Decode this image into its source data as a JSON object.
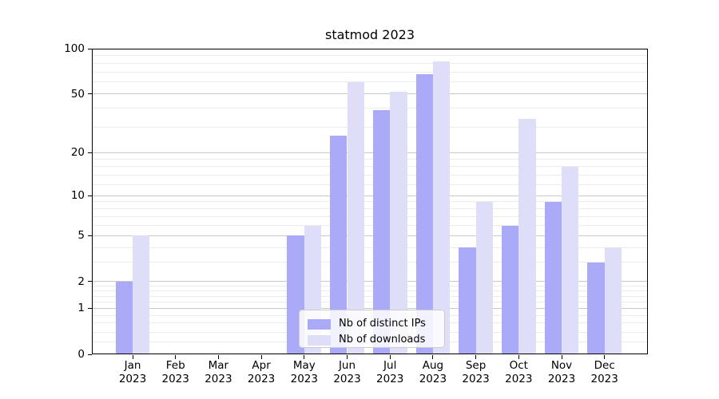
{
  "title": "statmod 2023",
  "chart_data": {
    "type": "bar",
    "title": "statmod 2023",
    "categories": [
      "Jan",
      "Feb",
      "Mar",
      "Apr",
      "May",
      "Jun",
      "Jul",
      "Aug",
      "Sep",
      "Oct",
      "Nov",
      "Dec"
    ],
    "year_label": "2023",
    "series": [
      {
        "name": "Nb of distinct IPs",
        "color": "#aaaaf8",
        "values": [
          2,
          0,
          0,
          0,
          5,
          26,
          39,
          68,
          4,
          6,
          9,
          3
        ]
      },
      {
        "name": "Nb of downloads",
        "color": "#dedef8",
        "values": [
          5,
          0,
          0,
          0,
          6,
          60,
          52,
          82,
          9,
          34,
          16,
          4
        ]
      }
    ],
    "y_scale": "log1p",
    "ylim": [
      0,
      100
    ],
    "y_major_ticks": [
      0,
      1,
      2,
      5,
      10,
      20,
      50,
      100
    ],
    "y_minor_gridlines": [
      0.2,
      0.4,
      0.6,
      0.8,
      1.2,
      1.4,
      1.6,
      1.8,
      3,
      4,
      6,
      7,
      8,
      9,
      12,
      14,
      16,
      18,
      30,
      40,
      60,
      70,
      80,
      90
    ],
    "grid": true,
    "legend_position": "lower center"
  },
  "colors": {
    "major_grid": "#c8c8c8",
    "minor_grid": "#ececec",
    "spine": "#000000",
    "background": "#ffffff"
  }
}
